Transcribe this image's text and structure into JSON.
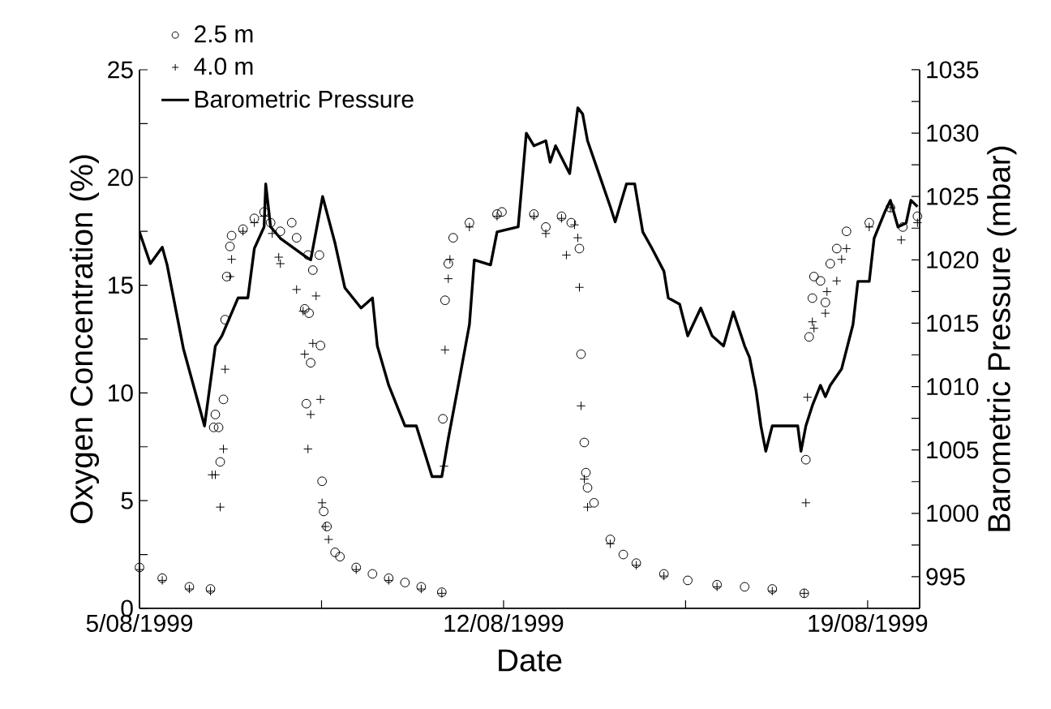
{
  "chart_data": {
    "type": "scatter",
    "xlabel": "Date",
    "ylabel": "Oxygen Concentration (%)",
    "y2label": "Barometric Pressure (mbar)",
    "legend": "top left",
    "grid": false,
    "xlim": [
      "1999-08-05",
      "1999-08-20"
    ],
    "xticks": [
      {
        "value": "1999-08-05",
        "label": "5/08/1999"
      },
      {
        "value": "1999-08-08T12:00",
        "label": null
      },
      {
        "value": "1999-08-12",
        "label": "12/08/1999"
      },
      {
        "value": "1999-08-15T12:00",
        "label": null
      },
      {
        "value": "1999-08-19",
        "label": "19/08/1999"
      }
    ],
    "ylim": [
      0,
      25
    ],
    "yticks": [
      0,
      {
        "value": 2.5,
        "label": null
      },
      5,
      {
        "value": 7.5,
        "label": null
      },
      10,
      {
        "value": 12.5,
        "label": null
      },
      15,
      {
        "value": 17.5,
        "label": null
      },
      20,
      {
        "value": 22.5,
        "label": null
      },
      25
    ],
    "y2lim": [
      992.5,
      1035
    ],
    "y2ticks": [
      {
        "value": 992.5,
        "label": null
      },
      995,
      {
        "value": 997.5,
        "label": null
      },
      1000,
      {
        "value": 1002.5,
        "label": null
      },
      1005,
      {
        "value": 1007.5,
        "label": null
      },
      1010,
      {
        "value": 1012.5,
        "label": null
      },
      1015,
      {
        "value": 1017.5,
        "label": null
      },
      1020,
      {
        "value": 1022.5,
        "label": null
      },
      1025,
      {
        "value": 1027.5,
        "label": null
      },
      1030,
      {
        "value": 1032.5,
        "label": null
      },
      1035
    ],
    "series": [
      {
        "name": "2.5 m",
        "marker": "circle",
        "color": "#000000",
        "x": [
          "1999-08-05T00:00",
          "1999-08-05T10:30",
          "1999-08-05T23:00",
          "1999-08-06T08:45",
          "1999-08-06T10:15",
          "1999-08-06T11:00",
          "1999-08-06T12:30",
          "1999-08-06T13:15",
          "1999-08-06T14:45",
          "1999-08-06T15:30",
          "1999-08-06T16:15",
          "1999-08-06T17:45",
          "1999-08-06T18:30",
          "1999-08-06T23:45",
          "1999-08-07T05:00",
          "1999-08-07T09:30",
          "1999-08-07T12:30",
          "1999-08-07T17:00",
          "1999-08-07T22:15",
          "1999-08-08T00:30",
          "1999-08-08T04:15",
          "1999-08-08T05:00",
          "1999-08-08T05:45",
          "1999-08-08T06:15",
          "1999-08-08T07:00",
          "1999-08-08T08:00",
          "1999-08-08T11:00",
          "1999-08-08T11:30",
          "1999-08-08T12:15",
          "1999-08-08T13:00",
          "1999-08-08T14:30",
          "1999-08-08T18:15",
          "1999-08-08T20:30",
          "1999-08-09T04:00",
          "1999-08-09T11:30",
          "1999-08-09T19:00",
          "1999-08-10T02:30",
          "1999-08-10T10:00",
          "1999-08-10T19:30",
          "1999-08-10T20:00",
          "1999-08-10T21:00",
          "1999-08-10T22:30",
          "1999-08-11T00:45",
          "1999-08-11T08:15",
          "1999-08-11T21:00",
          "1999-08-11T23:15",
          "1999-08-12T14:00",
          "1999-08-12T19:30",
          "1999-08-13T02:45",
          "1999-08-13T07:15",
          "1999-08-13T11:00",
          "1999-08-13T11:45",
          "1999-08-13T13:15",
          "1999-08-13T14:00",
          "1999-08-13T14:45",
          "1999-08-13T17:45",
          "1999-08-14T01:15",
          "1999-08-14T07:15",
          "1999-08-14T13:15",
          "1999-08-15T02:00",
          "1999-08-15T13:00",
          "1999-08-16T02:30",
          "1999-08-16T15:15",
          "1999-08-17T04:00",
          "1999-08-17T18:45",
          "1999-08-17T19:30",
          "1999-08-17T21:00",
          "1999-08-17T22:30",
          "1999-08-17T23:15",
          "1999-08-18T02:15",
          "1999-08-18T04:30",
          "1999-08-18T06:45",
          "1999-08-18T09:45",
          "1999-08-18T14:15",
          "1999-08-19T00:45",
          "1999-08-19T10:30",
          "1999-08-19T16:15",
          "1999-08-19T23:00"
        ],
        "values": [
          1.9,
          1.4,
          1.0,
          0.9,
          8.4,
          9.0,
          8.4,
          6.8,
          9.7,
          13.4,
          15.4,
          16.8,
          17.3,
          17.6,
          18.1,
          18.4,
          17.9,
          17.5,
          17.9,
          17.2,
          13.9,
          9.5,
          16.4,
          13.7,
          11.4,
          15.7,
          16.4,
          12.2,
          5.9,
          4.5,
          3.8,
          2.6,
          2.4,
          1.9,
          1.6,
          1.4,
          1.2,
          1.0,
          0.75,
          8.8,
          14.3,
          16.0,
          17.2,
          17.9,
          18.3,
          18.4,
          18.3,
          17.7,
          18.2,
          17.9,
          16.7,
          11.8,
          7.7,
          6.3,
          5.6,
          4.9,
          3.2,
          2.5,
          2.1,
          1.6,
          1.3,
          1.1,
          1.0,
          0.9,
          0.7,
          6.9,
          12.6,
          14.4,
          15.4,
          15.2,
          14.2,
          16.0,
          16.7,
          17.5,
          17.9,
          18.6,
          17.7,
          18.2
        ]
      },
      {
        "name": "4.0 m",
        "marker": "cross",
        "color": "#000000",
        "x": [
          "1999-08-05T00:00",
          "1999-08-05T10:30",
          "1999-08-05T23:00",
          "1999-08-06T08:45",
          "1999-08-06T09:30",
          "1999-08-06T11:00",
          "1999-08-06T13:15",
          "1999-08-06T14:45",
          "1999-08-06T15:30",
          "1999-08-06T17:45",
          "1999-08-06T18:30",
          "1999-08-06T23:45",
          "1999-08-07T05:00",
          "1999-08-07T09:30",
          "1999-08-07T13:15",
          "1999-08-07T16:15",
          "1999-08-07T17:00",
          "1999-08-08T00:30",
          "1999-08-08T03:30",
          "1999-08-08T04:15",
          "1999-08-08T05:45",
          "1999-08-08T07:00",
          "1999-08-08T08:00",
          "1999-08-08T09:30",
          "1999-08-08T11:30",
          "1999-08-08T12:15",
          "1999-08-08T13:45",
          "1999-08-08T15:15",
          "1999-08-09T04:00",
          "1999-08-09T19:00",
          "1999-08-10T10:00",
          "1999-08-10T19:30",
          "1999-08-10T20:30",
          "1999-08-10T21:00",
          "1999-08-10T22:30",
          "1999-08-10T23:15",
          "1999-08-11T08:15",
          "1999-08-11T21:00",
          "1999-08-12T14:00",
          "1999-08-12T19:30",
          "1999-08-13T02:45",
          "1999-08-13T05:00",
          "1999-08-13T08:45",
          "1999-08-13T10:15",
          "1999-08-13T11:00",
          "1999-08-13T11:45",
          "1999-08-13T13:15",
          "1999-08-13T14:45",
          "1999-08-14T01:15",
          "1999-08-14T13:15",
          "1999-08-15T02:00",
          "1999-08-16T02:30",
          "1999-08-17T04:00",
          "1999-08-17T18:45",
          "1999-08-17T19:30",
          "1999-08-17T20:15",
          "1999-08-17T22:30",
          "1999-08-17T23:15",
          "1999-08-18T04:30",
          "1999-08-18T05:15",
          "1999-08-18T09:45",
          "1999-08-18T12:00",
          "1999-08-18T14:15",
          "1999-08-19T00:45",
          "1999-08-19T10:30",
          "1999-08-19T15:30",
          "1999-08-19T23:00"
        ],
        "values": [
          1.8,
          1.3,
          0.9,
          0.8,
          6.2,
          6.2,
          4.7,
          7.4,
          11.1,
          15.4,
          16.2,
          17.5,
          17.9,
          18.2,
          17.4,
          16.3,
          16.0,
          14.8,
          13.8,
          11.8,
          7.4,
          9.0,
          12.3,
          14.5,
          9.7,
          4.9,
          3.8,
          3.2,
          1.8,
          1.3,
          0.9,
          0.7,
          6.6,
          12.0,
          15.3,
          16.2,
          17.7,
          18.2,
          18.2,
          17.4,
          18.1,
          16.4,
          17.8,
          17.2,
          14.9,
          9.4,
          6.0,
          4.7,
          3.0,
          2.0,
          1.5,
          1.0,
          0.8,
          0.7,
          4.9,
          9.8,
          13.3,
          13.0,
          13.7,
          14.7,
          15.2,
          16.2,
          16.7,
          17.7,
          18.6,
          17.1,
          17.9
        ]
      },
      {
        "name": "Barometric Pressure",
        "type": "line",
        "axis": "y2",
        "color": "#000000",
        "x": [
          "1999-08-05T00:00",
          "1999-08-05T05:00",
          "1999-08-05T10:30",
          "1999-08-05T12:45",
          "1999-08-05T20:15",
          "1999-08-06T06:00",
          "1999-08-06T11:00",
          "1999-08-06T14:00",
          "1999-08-06T21:30",
          "1999-08-07T02:00",
          "1999-08-07T05:00",
          "1999-08-07T09:30",
          "1999-08-07T10:15",
          "1999-08-07T12:30",
          "1999-08-07T17:00",
          "1999-08-08T03:30",
          "1999-08-08T07:00",
          "1999-08-08T12:30",
          "1999-08-08T18:15",
          "1999-08-08T22:45",
          "1999-08-09T06:15",
          "1999-08-09T11:30",
          "1999-08-09T13:45",
          "1999-08-09T19:00",
          "1999-08-10T02:30",
          "1999-08-10T07:45",
          "1999-08-10T15:00",
          "1999-08-10T19:30",
          "1999-08-10T22:30",
          "1999-08-11T03:00",
          "1999-08-11T08:15",
          "1999-08-11T10:30",
          "1999-08-11T18:00",
          "1999-08-11T21:00",
          "1999-08-12T06:45",
          "1999-08-12T10:30",
          "1999-08-12T14:00",
          "1999-08-12T19:30",
          "1999-08-12T21:30",
          "1999-08-13T00:00",
          "1999-08-13T06:30",
          "1999-08-13T10:15",
          "1999-08-13T12:30",
          "1999-08-13T14:45",
          "1999-08-13T20:00",
          "1999-08-14T01:15",
          "1999-08-14T03:30",
          "1999-08-14T08:45",
          "1999-08-14T12:30",
          "1999-08-14T16:15",
          "1999-08-14T20:30",
          "1999-08-15T02:00",
          "1999-08-15T04:00",
          "1999-08-15T09:15",
          "1999-08-15T13:00",
          "1999-08-15T19:00",
          "1999-08-16T00:15",
          "1999-08-16T05:30",
          "1999-08-16T10:00",
          "1999-08-16T15:15",
          "1999-08-16T17:30",
          "1999-08-16T20:30",
          "1999-08-16T22:45",
          "1999-08-17T01:00",
          "1999-08-17T04:00",
          "1999-08-17T15:45",
          "1999-08-17T17:15",
          "1999-08-17T19:30",
          "1999-08-17T22:30",
          "1999-08-18T02:15",
          "1999-08-18T04:30",
          "1999-08-18T06:45",
          "1999-08-18T12:00",
          "1999-08-18T17:15",
          "1999-08-18T19:30",
          "1999-08-19T00:45",
          "1999-08-19T03:00",
          "1999-08-19T08:00",
          "1999-08-19T10:30",
          "1999-08-19T14:00",
          "1999-08-19T17:45",
          "1999-08-19T20:00",
          "1999-08-19T23:00"
        ],
        "values": [
          1022.2,
          1019.7,
          1021.0,
          1019.6,
          1013.0,
          1006.9,
          1013.2,
          1014.0,
          1017.0,
          1017.0,
          1020.9,
          1022.6,
          1026.0,
          1022.6,
          1021.7,
          1020.4,
          1020.0,
          1025.0,
          1021.3,
          1017.8,
          1016.2,
          1017.0,
          1013.2,
          1010.1,
          1006.9,
          1006.9,
          1002.9,
          1002.9,
          1005.9,
          1010.0,
          1014.9,
          1020.0,
          1019.6,
          1022.2,
          1022.6,
          1030.0,
          1029.0,
          1029.4,
          1027.7,
          1029.0,
          1026.8,
          1032.0,
          1031.5,
          1029.4,
          1026.8,
          1024.2,
          1023.0,
          1026.0,
          1026.0,
          1022.2,
          1020.9,
          1019.1,
          1017.0,
          1016.5,
          1014.0,
          1016.2,
          1014.0,
          1013.2,
          1015.9,
          1013.2,
          1012.3,
          1009.7,
          1006.9,
          1004.9,
          1006.9,
          1006.9,
          1004.9,
          1006.9,
          1008.5,
          1010.1,
          1009.2,
          1010.1,
          1011.4,
          1014.9,
          1018.3,
          1018.3,
          1021.7,
          1023.8,
          1024.7,
          1022.6,
          1022.9,
          1024.7,
          1024.2
        ]
      }
    ]
  }
}
